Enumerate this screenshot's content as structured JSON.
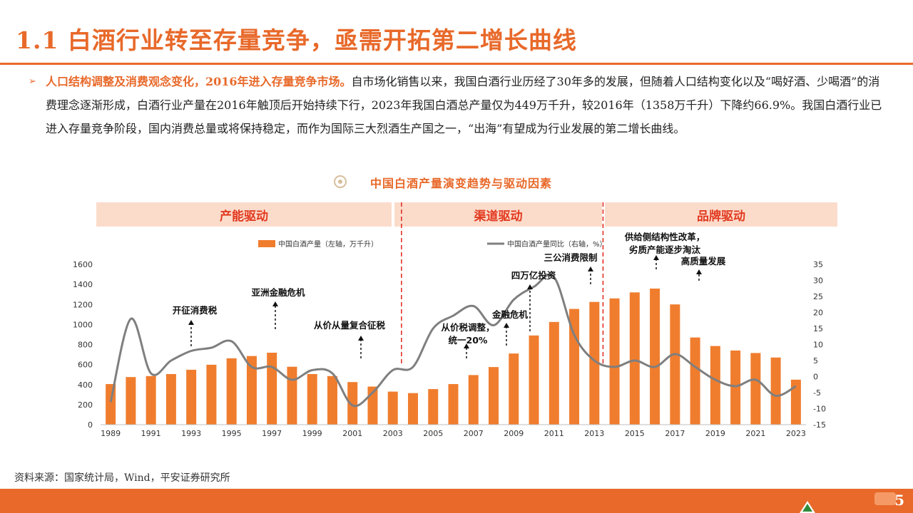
{
  "title": "1.1 白酒行业转至存量竞争，亟需开拓第二增长曲线",
  "bullet": {
    "lead": "人口结构调整及消费观念变化，2016年进入存量竞争市场。",
    "body": "自市场化销售以来，我国白酒行业历经了30年多的发展，但随着人口结构变化以及“喝好酒、少喝酒”的消费理念逐渐形成，白酒行业产量在2016年触顶后开始持续下行，2023年我国白酒总产量仅为449万千升，较2016年（1358万千升）下降约66.9%。我国白酒行业已进入存量竞争阶段，国内消费总量或将保持稳定，而作为国际三大烈酒生产国之一，“出海”有望成为行业发展的第二增长曲线。"
  },
  "chart_title": "中国白酒产量演变趋势与驱动因素",
  "phases": [
    "产能驱动",
    "渠道驱动",
    "品牌驱动"
  ],
  "source": "资料来源：国家统计局，Wind，平安证券研究所",
  "page_number": "5",
  "colors": {
    "accent": "#e8692a",
    "bar": "#f07d2e",
    "line": "#7f7f7f",
    "phase_bg": "#fbdccb",
    "phase_text": "#e2391f",
    "divider": "#e0251b"
  },
  "chart_data": {
    "type": "bar",
    "categories": [
      "1989",
      "1990",
      "1991",
      "1992",
      "1993",
      "1994",
      "1995",
      "1996",
      "1997",
      "1998",
      "1999",
      "2000",
      "2001",
      "2002",
      "2003",
      "2004",
      "2005",
      "2006",
      "2007",
      "2008",
      "2009",
      "2010",
      "2011",
      "2012",
      "2013",
      "2014",
      "2015",
      "2016",
      "2017",
      "2018",
      "2019",
      "2020",
      "2021",
      "2022",
      "2023"
    ],
    "x_tick_labels": [
      "1989",
      "1991",
      "1993",
      "1995",
      "1997",
      "1999",
      "2001",
      "2003",
      "2005",
      "2007",
      "2009",
      "2011",
      "2013",
      "2015",
      "2017",
      "2019",
      "2021",
      "2023"
    ],
    "series": [
      {
        "name": "中国白酒产量（左轴，万千升）",
        "type": "bar",
        "axis": "left",
        "values": [
          405,
          475,
          485,
          505,
          548,
          598,
          662,
          685,
          718,
          578,
          505,
          485,
          425,
          380,
          330,
          315,
          355,
          405,
          495,
          575,
          710,
          890,
          1025,
          1155,
          1225,
          1260,
          1320,
          1358,
          1200,
          870,
          785,
          740,
          715,
          670,
          449
        ]
      },
      {
        "name": "中国白酒产量同比（右轴，%）",
        "type": "line",
        "axis": "right",
        "values": [
          -8,
          18,
          1,
          5,
          8,
          9,
          11,
          3,
          3,
          -1,
          2,
          1,
          -9,
          -5,
          2,
          3,
          15,
          19,
          22,
          16,
          24,
          28,
          31,
          13,
          5,
          3,
          5,
          3,
          7,
          3,
          -1,
          -3,
          -1,
          -6,
          -3
        ]
      }
    ],
    "ylim_left": [
      0,
      1600
    ],
    "left_ticks": [
      0,
      200,
      400,
      600,
      800,
      1000,
      1200,
      1400,
      1600
    ],
    "ylim_right": [
      -15,
      35
    ],
    "right_ticks": [
      -15,
      -10,
      -5,
      0,
      5,
      10,
      15,
      20,
      25,
      30,
      35
    ],
    "annotations": [
      {
        "text": "开征消费税",
        "year": "1993"
      },
      {
        "text": "亚洲金融危机",
        "year": "1998"
      },
      {
        "text": "从价从量复合征税",
        "year": "2001"
      },
      {
        "text": "从价税调整，",
        "text2": "统一20%",
        "year": "2006"
      },
      {
        "text": "金融危机",
        "year": "2008"
      },
      {
        "text": "四万亿投资",
        "year": "2010"
      },
      {
        "text": "三公消费限制",
        "year": "2013"
      },
      {
        "text": "供给侧结构性改革，",
        "text2": "劣质产能逐步淘汰",
        "year": "2016"
      },
      {
        "text": "高质量发展",
        "year": "2018"
      }
    ],
    "phase_dividers": [
      "2003",
      "2013"
    ],
    "legend_position": "top"
  }
}
